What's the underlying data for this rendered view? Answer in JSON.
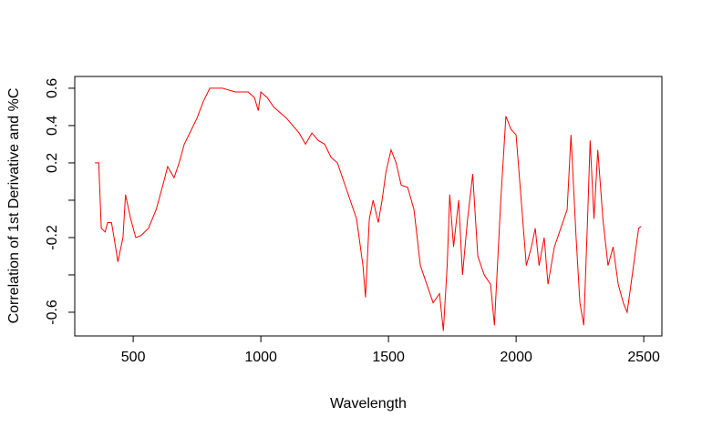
{
  "chart_data": {
    "type": "line",
    "xlabel": "Wavelength",
    "ylabel": "Correlation of 1st Derivative and %C",
    "xlim": [
      271,
      2571
    ],
    "ylim": [
      -0.727,
      0.663
    ],
    "xticks": [
      500,
      1000,
      1500,
      2000,
      2500
    ],
    "yticks": [
      -0.6,
      -0.2,
      0.2,
      0.4,
      0.6
    ],
    "yticks_unlabeled": [
      -0.4,
      0
    ],
    "grid": false,
    "series": [
      {
        "color": "#ff0000",
        "x": [
          350,
          365,
          375,
          390,
          400,
          415,
          425,
          440,
          460,
          470,
          490,
          510,
          530,
          560,
          590,
          620,
          635,
          660,
          680,
          700,
          725,
          750,
          775,
          800,
          850,
          900,
          950,
          975,
          990,
          1000,
          1025,
          1050,
          1075,
          1100,
          1125,
          1150,
          1175,
          1200,
          1225,
          1250,
          1275,
          1300,
          1325,
          1350,
          1375,
          1400,
          1410,
          1425,
          1440,
          1460,
          1475,
          1490,
          1510,
          1530,
          1550,
          1575,
          1600,
          1625,
          1650,
          1675,
          1700,
          1715,
          1730,
          1740,
          1755,
          1775,
          1790,
          1810,
          1830,
          1850,
          1875,
          1900,
          1915,
          1940,
          1960,
          1980,
          2000,
          2020,
          2040,
          2060,
          2075,
          2090,
          2110,
          2125,
          2150,
          2175,
          2200,
          2215,
          2235,
          2250,
          2265,
          2280,
          2290,
          2305,
          2320,
          2340,
          2360,
          2380,
          2400,
          2420,
          2435,
          2455,
          2470,
          2480,
          2490
        ],
        "values": [
          0.2,
          0.2,
          -0.15,
          -0.17,
          -0.12,
          -0.12,
          -0.2,
          -0.33,
          -0.2,
          0.03,
          -0.1,
          -0.2,
          -0.19,
          -0.15,
          -0.05,
          0.1,
          0.18,
          0.12,
          0.2,
          0.3,
          0.37,
          0.44,
          0.53,
          0.6,
          0.6,
          0.58,
          0.58,
          0.55,
          0.48,
          0.58,
          0.55,
          0.5,
          0.47,
          0.44,
          0.4,
          0.36,
          0.3,
          0.36,
          0.32,
          0.3,
          0.23,
          0.2,
          0.1,
          0.0,
          -0.1,
          -0.35,
          -0.52,
          -0.1,
          0.0,
          -0.12,
          0.0,
          0.15,
          0.27,
          0.2,
          0.08,
          0.07,
          -0.05,
          -0.35,
          -0.45,
          -0.55,
          -0.5,
          -0.7,
          -0.35,
          0.03,
          -0.25,
          0.0,
          -0.4,
          -0.1,
          0.14,
          -0.3,
          -0.4,
          -0.45,
          -0.67,
          0.0,
          0.45,
          0.38,
          0.35,
          0.0,
          -0.35,
          -0.25,
          -0.15,
          -0.35,
          -0.2,
          -0.45,
          -0.25,
          -0.15,
          -0.05,
          0.35,
          -0.2,
          -0.55,
          -0.67,
          -0.1,
          0.32,
          -0.1,
          0.27,
          -0.1,
          -0.35,
          -0.25,
          -0.45,
          -0.55,
          -0.6,
          -0.4,
          -0.25,
          -0.15,
          -0.14
        ]
      }
    ]
  }
}
